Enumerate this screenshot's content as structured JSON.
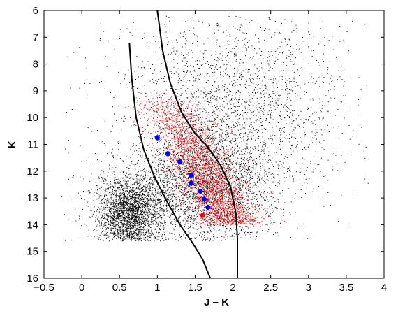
{
  "chart_data": {
    "type": "scatter",
    "title": "",
    "xlabel": "J – K",
    "ylabel": "K",
    "xlim": [
      -0.5,
      4
    ],
    "ylim": [
      16,
      6
    ],
    "y_axis_inverted": true,
    "grid": false,
    "legend": "none",
    "x_ticks": [
      -0.5,
      0,
      0.5,
      1,
      1.5,
      2,
      2.5,
      3,
      3.5,
      4
    ],
    "x_tick_labels": [
      "−0.5",
      "0",
      "0.5",
      "1",
      "1.5",
      "2",
      "2.5",
      "3",
      "3.5",
      "4"
    ],
    "y_ticks": [
      6,
      7,
      8,
      9,
      10,
      11,
      12,
      13,
      14,
      15,
      16
    ],
    "y_tick_labels": [
      "6",
      "7",
      "8",
      "9",
      "10",
      "11",
      "12",
      "13",
      "14",
      "15",
      "16"
    ],
    "series": [
      {
        "kind": "highlight-points",
        "color": "#0000ff",
        "points": [
          [
            1.0,
            10.75
          ],
          [
            1.14,
            11.35
          ],
          [
            1.3,
            11.65
          ],
          [
            1.45,
            12.15
          ],
          [
            1.45,
            12.45
          ],
          [
            1.57,
            12.75
          ],
          [
            1.62,
            13.05
          ],
          [
            1.67,
            13.35
          ]
        ]
      },
      {
        "kind": "highlight-points",
        "color": "#ff0000",
        "points": [
          [
            1.6,
            13.65
          ]
        ]
      },
      {
        "kind": "curve",
        "color": "#000000",
        "points": [
          [
            0.63,
            7.2
          ],
          [
            0.66,
            8.5
          ],
          [
            0.72,
            10.0
          ],
          [
            0.82,
            11.2
          ],
          [
            0.96,
            12.2
          ],
          [
            1.12,
            13.1
          ],
          [
            1.3,
            14.0
          ],
          [
            1.47,
            14.7
          ],
          [
            1.6,
            15.3
          ],
          [
            1.7,
            16.0
          ]
        ]
      },
      {
        "kind": "curve",
        "color": "#000000",
        "points": [
          [
            1.0,
            6.0
          ],
          [
            1.07,
            7.5
          ],
          [
            1.17,
            8.7
          ],
          [
            1.32,
            9.8
          ],
          [
            1.5,
            10.6
          ],
          [
            1.67,
            11.1
          ],
          [
            1.84,
            11.8
          ],
          [
            1.97,
            12.6
          ],
          [
            2.04,
            13.6
          ],
          [
            2.06,
            14.5
          ],
          [
            2.06,
            16.0
          ]
        ]
      },
      {
        "kind": "field-stars",
        "color": "#000000",
        "description_count": 9000
      },
      {
        "kind": "member-stars",
        "color": "#ff0000",
        "description_count": 3500
      }
    ]
  }
}
